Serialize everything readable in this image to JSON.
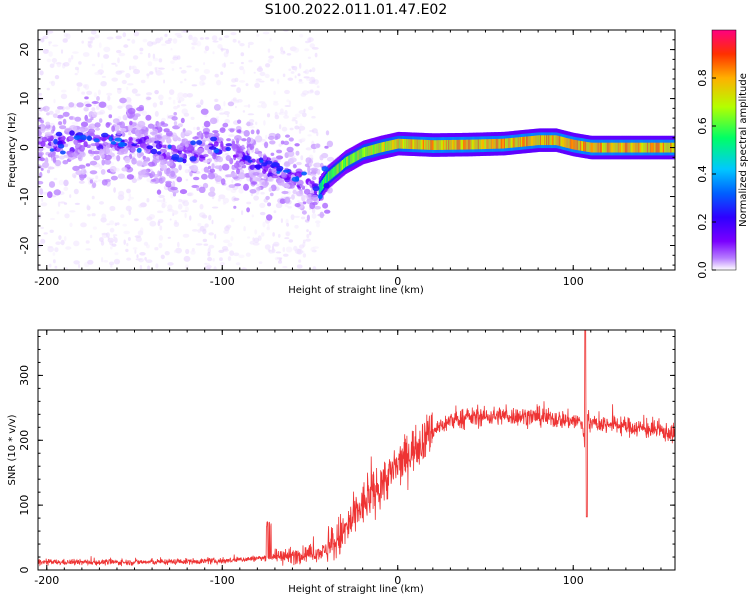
{
  "title": "S100.2022.011.01.47.E02",
  "colors": {
    "snr_line": "#ee3333",
    "axis": "#000000",
    "colormap": [
      "#ffffff",
      "#e8d4ff",
      "#b67cff",
      "#7a00ff",
      "#2e00ff",
      "#0060ff",
      "#00c8ff",
      "#00ff66",
      "#b4ff00",
      "#ffb000",
      "#ff3000",
      "#ff0080"
    ]
  },
  "chart_data": [
    {
      "type": "heatmap",
      "name": "spectrogram",
      "xlabel": "Height of straight line (km)",
      "ylabel": "Frequency (Hz)",
      "xlim": [
        -205,
        158
      ],
      "ylim": [
        -25,
        24
      ],
      "xticks": [
        -200,
        -100,
        0,
        100
      ],
      "yticks": [
        -20,
        -10,
        0,
        10,
        20
      ],
      "colorbar": {
        "label": "Normalized spectral amplitude",
        "range": [
          0,
          1
        ],
        "ticks": [
          "0.0",
          "0.2",
          "0.4",
          "0.6",
          "0.8"
        ]
      },
      "ridge": {
        "description_points_x": [
          -200,
          -170,
          -150,
          -120,
          -100,
          -80,
          -60,
          -50,
          -45,
          -40,
          -30,
          -20,
          -10,
          0,
          20,
          40,
          60,
          80,
          90,
          100,
          110,
          130,
          158
        ],
        "description_points_y": [
          0.5,
          1.5,
          1.0,
          -1.5,
          0.0,
          -3.0,
          -6.0,
          -8.0,
          -8.5,
          -6.0,
          -3.0,
          -1.0,
          0.0,
          0.8,
          0.5,
          0.6,
          0.8,
          1.5,
          1.5,
          0.6,
          0.0,
          0.0,
          0.0
        ]
      }
    },
    {
      "type": "line",
      "name": "snr",
      "xlabel": "Height of straight line (km)",
      "ylabel": "SNR (10 * v/v)",
      "xlim": [
        -205,
        158
      ],
      "ylim": [
        0,
        370
      ],
      "xticks": [
        -200,
        -100,
        0,
        100
      ],
      "yticks": [
        0,
        100,
        200,
        300
      ],
      "envelope_x": [
        -205,
        -150,
        -100,
        -80,
        -60,
        -50,
        -40,
        -30,
        -20,
        -10,
        0,
        10,
        20,
        30,
        40,
        60,
        80,
        100,
        105,
        107,
        108,
        110,
        120,
        140,
        158
      ],
      "envelope_y": [
        12,
        12,
        14,
        18,
        22,
        25,
        30,
        60,
        100,
        130,
        160,
        190,
        215,
        230,
        235,
        238,
        236,
        230,
        228,
        180,
        240,
        225,
        225,
        218,
        210
      ]
    }
  ]
}
